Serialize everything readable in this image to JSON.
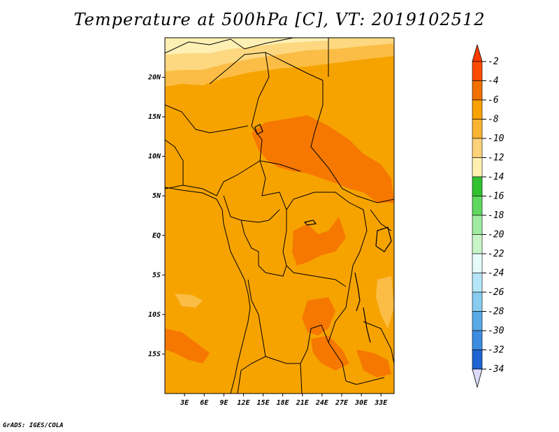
{
  "title": "Temperature at 500hPa [C], VT: 2019102512",
  "footer": "GrADS: IGES/COLA",
  "map": {
    "lon_range": [
      0,
      35
    ],
    "lat_range": [
      -20,
      25
    ],
    "lat_ticks": [
      {
        "label": "20N",
        "lat": 20
      },
      {
        "label": "15N",
        "lat": 15
      },
      {
        "label": "10N",
        "lat": 10
      },
      {
        "label": "5N",
        "lat": 5
      },
      {
        "label": "EQ",
        "lat": 0
      },
      {
        "label": "5S",
        "lat": -5
      },
      {
        "label": "10S",
        "lat": -10
      },
      {
        "label": "15S",
        "lat": -15
      }
    ],
    "lon_ticks": [
      {
        "label": "3E",
        "lon": 3
      },
      {
        "label": "6E",
        "lon": 6
      },
      {
        "label": "9E",
        "lon": 9
      },
      {
        "label": "12E",
        "lon": 12
      },
      {
        "label": "15E",
        "lon": 15
      },
      {
        "label": "18E",
        "lon": 18
      },
      {
        "label": "21E",
        "lon": 21
      },
      {
        "label": "24E",
        "lon": 24
      },
      {
        "label": "27E",
        "lon": 27
      },
      {
        "label": "30E",
        "lon": 30
      },
      {
        "label": "33E",
        "lon": 33
      }
    ]
  },
  "colorbar": {
    "labels": [
      "-2",
      "-4",
      "-6",
      "-8",
      "-10",
      "-12",
      "-14",
      "-16",
      "-18",
      "-20",
      "-22",
      "-24",
      "-26",
      "-28",
      "-30",
      "-32",
      "-34"
    ],
    "colors": [
      "#fa4b00",
      "#f07000",
      "#faa000",
      "#fab432",
      "#fcd27a",
      "#fef0b0",
      "#30c030",
      "#60d860",
      "#a0eca0",
      "#c8f5c8",
      "#e6fafa",
      "#b4e6f8",
      "#88ccf0",
      "#5aaae6",
      "#3c8ce0",
      "#1e64d2",
      "#0a46b4",
      "#0a1e78"
    ],
    "top_color": "#fa3c00",
    "bottom_color": "#dcdcfa"
  }
}
